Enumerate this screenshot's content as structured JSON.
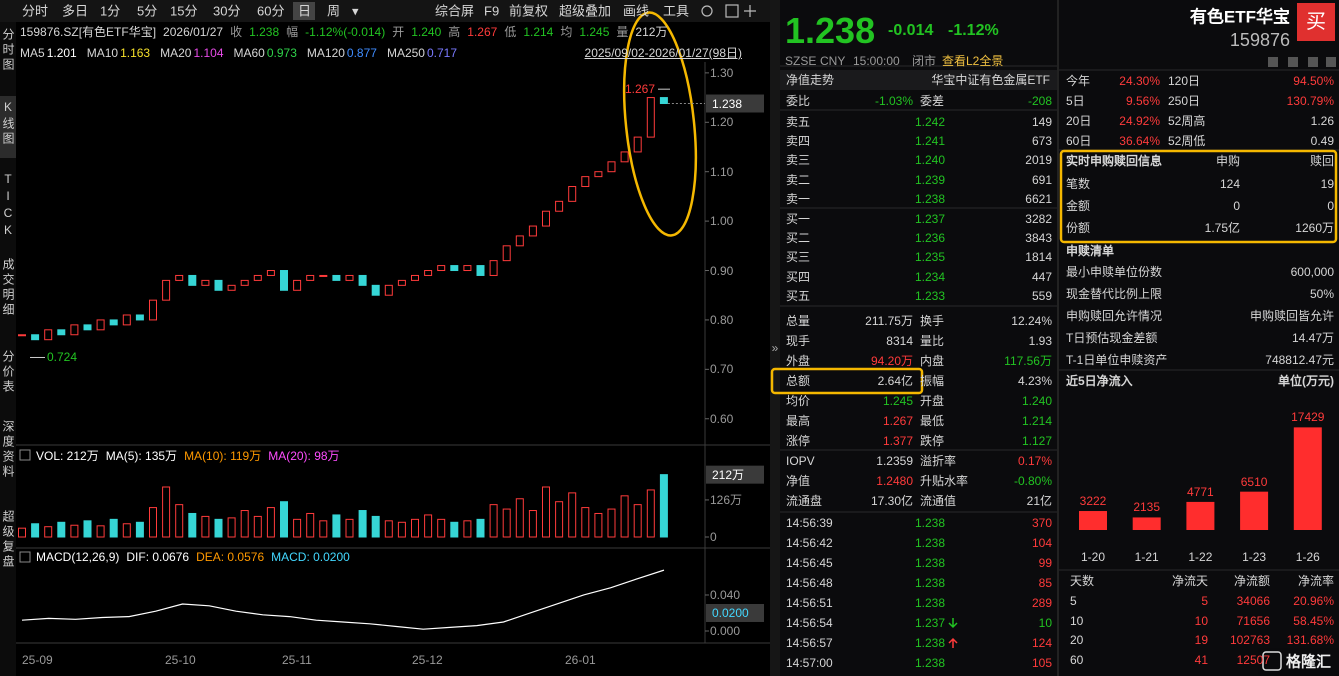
{
  "toolbar": {
    "periods": [
      "分时",
      "多日",
      "1分",
      "5分",
      "15分",
      "30分",
      "60分",
      "日",
      "周",
      "▾"
    ],
    "tools": [
      "综合屏",
      "F9",
      "前复权",
      "超级叠加",
      "画线",
      "工具"
    ]
  },
  "sidebar": [
    "分时图",
    "K线图",
    "TICK",
    "成交明细",
    "分价表",
    "深度资料",
    "超级复盘"
  ],
  "kline": {
    "info": [
      "159876.SZ[有色ETF华宝]",
      "2026/01/27",
      "收",
      "1.238",
      "幅",
      "-1.12%(-0.014)",
      "开",
      "1.240",
      "高",
      "1.267",
      "低",
      "1.214",
      "均",
      "1.245",
      "量",
      "212万"
    ],
    "ma": [
      {
        "name": "MA5",
        "value": "1.201",
        "color": "#ffffff"
      },
      {
        "name": "MA10",
        "value": "1.163",
        "color": "#f5e02a"
      },
      {
        "name": "MA20",
        "value": "1.104",
        "color": "#e84ce8"
      },
      {
        "name": "MA60",
        "value": "0.973",
        "color": "#2fd14a"
      },
      {
        "name": "MA120",
        "value": "0.877",
        "color": "#3f8cff"
      },
      {
        "name": "MA250",
        "value": "0.717",
        "color": "#7a7aff"
      }
    ],
    "range": "2025/09/02-2026/01/27(98日)",
    "ylim": [
      0.557,
      1.322
    ],
    "yticks": [
      {
        "value": 1.3,
        "label": "1.30"
      },
      {
        "value": 1.2,
        "label": "1.20"
      },
      {
        "value": 1.1,
        "label": "1.10"
      },
      {
        "value": 1.0,
        "label": "1.00"
      },
      {
        "value": 0.9,
        "label": "0.90"
      },
      {
        "value": 0.8,
        "label": "0.80"
      },
      {
        "value": 0.7,
        "label": "0.70"
      },
      {
        "value": 0.6,
        "label": "0.60"
      }
    ],
    "last_price": 1.238,
    "high": 1.267,
    "low": 0.724,
    "closes": [
      0.77,
      0.76,
      0.78,
      0.77,
      0.79,
      0.78,
      0.8,
      0.79,
      0.81,
      0.8,
      0.84,
      0.88,
      0.89,
      0.87,
      0.88,
      0.86,
      0.87,
      0.88,
      0.89,
      0.9,
      0.86,
      0.88,
      0.89,
      0.89,
      0.88,
      0.89,
      0.87,
      0.85,
      0.87,
      0.88,
      0.89,
      0.9,
      0.91,
      0.9,
      0.91,
      0.89,
      0.92,
      0.95,
      0.97,
      0.99,
      1.02,
      1.04,
      1.07,
      1.09,
      1.1,
      1.12,
      1.14,
      1.17,
      1.25,
      1.238
    ],
    "dates": [
      "25-09",
      "25-10",
      "25-11",
      "25-12",
      "26-01"
    ],
    "up_color": "#ff3b3b",
    "down_color": "#36d6d6"
  },
  "volume": {
    "header": [
      "VOL: 212万",
      "MA(5): 135万",
      "MA(10): 119万",
      "MA(20): 98万"
    ],
    "ylim": [
      0,
      255
    ],
    "yticks": [
      {
        "value": 126,
        "label": "126万"
      },
      {
        "value": 0,
        "label": "0"
      }
    ],
    "last": {
      "value": 212,
      "label": "212万"
    },
    "values": [
      30,
      45,
      35,
      50,
      40,
      55,
      38,
      60,
      45,
      50,
      100,
      170,
      110,
      80,
      70,
      60,
      65,
      90,
      70,
      100,
      120,
      60,
      80,
      55,
      75,
      60,
      90,
      70,
      55,
      50,
      60,
      75,
      60,
      50,
      55,
      60,
      110,
      95,
      130,
      90,
      170,
      120,
      150,
      100,
      80,
      95,
      140,
      110,
      160,
      212
    ]
  },
  "macd": {
    "header": [
      "MACD(12,26,9)",
      "DIF: 0.0676",
      "DEA: 0.0576",
      "MACD: 0.0200"
    ],
    "ylim": [
      -0.01,
      0.0733
    ],
    "yticks": [
      {
        "value": 0.04,
        "label": "0.040"
      },
      {
        "value": 0,
        "label": "0.000"
      }
    ],
    "last": {
      "value": 0.02,
      "label": "0.0200"
    },
    "dif": [
      0.012,
      0.014,
      0.013,
      0.015,
      0.016,
      0.022,
      0.03,
      0.028,
      0.022,
      0.018,
      0.016,
      0.012,
      0.01,
      0.008,
      0.005,
      0.002,
      0.004,
      0.006,
      0.01,
      0.02,
      0.03,
      0.04,
      0.048,
      0.058,
      0.0676
    ]
  },
  "quote": {
    "price": "1.238",
    "change": "-0.014",
    "pct": "-1.12%",
    "meta": [
      "SZSE",
      "CNY",
      "15:00:00",
      "闭市",
      "查看L2全景"
    ]
  },
  "book": {
    "title": [
      "净值走势",
      "华宝中证有色金属ETF"
    ],
    "ratio": [
      "委比",
      "-1.03%",
      "委差",
      "-208"
    ],
    "asks": [
      [
        "卖五",
        "1.242",
        "149"
      ],
      [
        "卖四",
        "1.241",
        "673"
      ],
      [
        "卖三",
        "1.240",
        "2019"
      ],
      [
        "卖二",
        "1.239",
        "691"
      ],
      [
        "卖一",
        "1.238",
        "6621"
      ]
    ],
    "bids": [
      [
        "买一",
        "1.237",
        "3282"
      ],
      [
        "买二",
        "1.236",
        "3843"
      ],
      [
        "买三",
        "1.235",
        "1814"
      ],
      [
        "买四",
        "1.234",
        "447"
      ],
      [
        "买五",
        "1.233",
        "559"
      ]
    ],
    "stats": [
      [
        "总量",
        "211.75万",
        "换手",
        "12.24%"
      ],
      [
        "现手",
        "8314",
        "量比",
        "1.93"
      ],
      [
        "外盘",
        "94.20万",
        "内盘",
        "117.56万"
      ],
      [
        "总额",
        "2.64亿",
        "振幅",
        "4.23%"
      ],
      [
        "均价",
        "1.245",
        "开盘",
        "1.240"
      ],
      [
        "最高",
        "1.267",
        "最低",
        "1.214"
      ],
      [
        "涨停",
        "1.377",
        "跌停",
        "1.127"
      ]
    ],
    "fund": [
      [
        "IOPV",
        "1.2359",
        "溢折率",
        "0.17%"
      ],
      [
        "净值",
        "1.2480",
        "升贴水率",
        "-0.80%"
      ],
      [
        "流通盘",
        "17.30亿",
        "流通值",
        "21亿"
      ]
    ],
    "ticks": [
      [
        "14:56:39",
        "1.238",
        "370"
      ],
      [
        "14:56:42",
        "1.238",
        "104"
      ],
      [
        "14:56:45",
        "1.238",
        "99"
      ],
      [
        "14:56:48",
        "1.238",
        "85"
      ],
      [
        "14:56:51",
        "1.238",
        "289"
      ],
      [
        "14:56:54",
        "1.237",
        "10"
      ],
      [
        "14:56:57",
        "1.238",
        "124"
      ],
      [
        "14:57:00",
        "1.238",
        "105"
      ]
    ]
  },
  "profile": {
    "name": "有色ETF华宝",
    "code": "159876",
    "buy": "买",
    "perf": [
      [
        "今年",
        "24.30%",
        "120日",
        "94.50%"
      ],
      [
        "5日",
        "9.56%",
        "250日",
        "130.79%"
      ],
      [
        "20日",
        "24.92%",
        "52周高",
        "1.26"
      ],
      [
        "60日",
        "36.64%",
        "52周低",
        "0.49"
      ]
    ],
    "sub": {
      "header": [
        "实时申购赎回信息",
        "申购",
        "赎回"
      ],
      "rows": [
        [
          "笔数",
          "124",
          "19"
        ],
        [
          "金额",
          "0",
          "0"
        ],
        [
          "份额",
          "1.75亿",
          "1260万"
        ]
      ]
    },
    "list": {
      "title": "申赎清单",
      "rows": [
        [
          "最小申赎单位份数",
          "600,000"
        ],
        [
          "现金替代比例上限",
          "50%"
        ],
        [
          "申购赎回允许情况",
          "申购赎回皆允许"
        ],
        [
          "T日预估现金差额",
          "14.47万"
        ],
        [
          "T-1日单位申赎资产",
          "748812.47元"
        ]
      ]
    },
    "flow": {
      "type": "bar",
      "title": "近5日净流入",
      "unit": "单位(万元)",
      "categories": [
        "1-20",
        "1-21",
        "1-22",
        "1-23",
        "1-26"
      ],
      "values": [
        3222,
        2135,
        4771,
        6510,
        17429
      ],
      "ylim": [
        0,
        18000
      ],
      "color": "#ff2d2d"
    },
    "table": {
      "header": [
        "天数",
        "净流天",
        "净流额",
        "净流率"
      ],
      "rows": [
        [
          "5",
          "5",
          "34066",
          "20.96%"
        ],
        [
          "10",
          "10",
          "71656",
          "58.45%"
        ],
        [
          "20",
          "19",
          "102763",
          "131.68%"
        ],
        [
          "60",
          "41",
          "12507",
          ""
        ]
      ]
    }
  },
  "watermark": "格隆汇"
}
